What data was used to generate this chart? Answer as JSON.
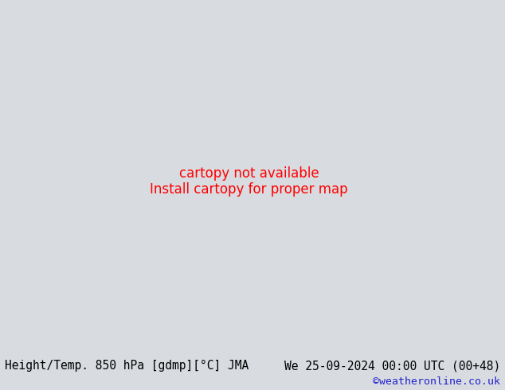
{
  "title_left": "Height/Temp. 850 hPa [gdmp][°C] JMA",
  "title_right": "We 25-09-2024 00:00 UTC (00+48)",
  "credit": "©weatheronline.co.uk",
  "bg_sea_color": "#d8dce0",
  "bg_land_gray": "#b8bcc0",
  "bg_land_green": "#c8e8a0",
  "border_color": "#909090",
  "bottom_bar_color": "#d0d4cc",
  "bottom_text_color": "#000000",
  "credit_color": "#2222cc",
  "title_fontsize": 10.5,
  "credit_fontsize": 9.5,
  "fig_width": 6.34,
  "fig_height": 4.9,
  "dpi": 100,
  "map_extent": [
    -30,
    45,
    30,
    75
  ],
  "black_lw": 2.2,
  "contour_lw": 1.3,
  "cyan_color": "#00b0b0",
  "green_color": "#78be00",
  "orange_color": "#ff8c00",
  "red_color": "#dd0000"
}
